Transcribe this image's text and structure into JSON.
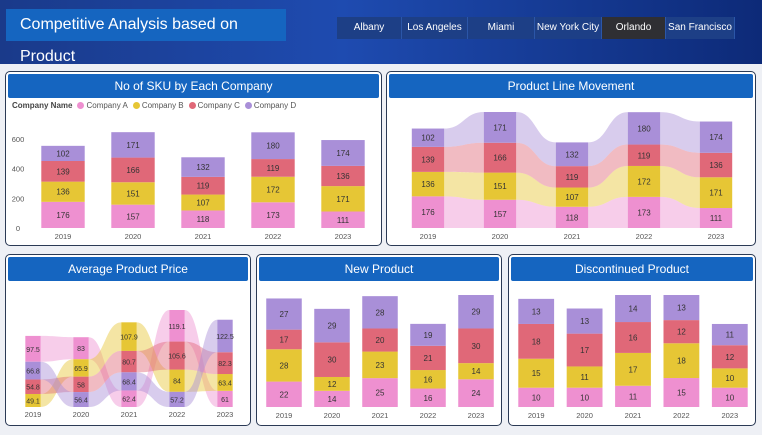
{
  "title": "Competitive Analysis based on Product",
  "tabs": [
    {
      "label": "Albany",
      "active": false
    },
    {
      "label": "Los Angeles",
      "active": false
    },
    {
      "label": "Miami",
      "active": false
    },
    {
      "label": "New York City",
      "active": false
    },
    {
      "label": "Orlando",
      "active": true
    },
    {
      "label": "San Francisco",
      "active": false
    }
  ],
  "colors": {
    "A": "#ee90d0",
    "B": "#e6c635",
    "C": "#e06878",
    "D": "#a98fd8"
  },
  "legend": {
    "title": "Company Name",
    "items": [
      "Company A",
      "Company B",
      "Company C",
      "Company D"
    ]
  },
  "panels": {
    "sku": "No of SKU by Each Company",
    "plm": "Product Line Movement",
    "price": "Average Product Price",
    "new": "New Product",
    "disc": "Discontinued Product"
  },
  "chart_data": [
    {
      "type": "bar",
      "title": "No of SKU by Each Company",
      "categories": [
        "2019",
        "2020",
        "2021",
        "2022",
        "2023"
      ],
      "series": [
        {
          "name": "Company A",
          "values": [
            176,
            157,
            118,
            173,
            111
          ]
        },
        {
          "name": "Company B",
          "values": [
            136,
            151,
            107,
            172,
            171
          ]
        },
        {
          "name": "Company C",
          "values": [
            139,
            166,
            119,
            119,
            136
          ]
        },
        {
          "name": "Company D",
          "values": [
            102,
            171,
            132,
            180,
            174
          ]
        }
      ],
      "yticks": [
        0,
        200,
        400,
        600
      ],
      "ylim": [
        0,
        700
      ],
      "legend": "top"
    },
    {
      "type": "bar",
      "title": "Product Line Movement",
      "categories": [
        "2019",
        "2020",
        "2021",
        "2022",
        "2023"
      ],
      "series": [
        {
          "values": [
            176,
            157,
            118,
            173,
            111
          ]
        },
        {
          "values": [
            136,
            151,
            107,
            172,
            171
          ]
        },
        {
          "values": [
            139,
            166,
            119,
            119,
            136
          ]
        },
        {
          "values": [
            102,
            171,
            132,
            180,
            174
          ]
        }
      ]
    },
    {
      "type": "bar",
      "title": "Average Product Price",
      "categories": [
        "2019",
        "2020",
        "2021",
        "2022",
        "2023"
      ],
      "series": [
        {
          "values": [
            97.5,
            83.0,
            62.4,
            119.1,
            61.0
          ]
        },
        {
          "values": [
            49.1,
            65.9,
            107.9,
            84.0,
            63.4
          ]
        },
        {
          "values": [
            54.8,
            58.0,
            80.7,
            105.6,
            82.3
          ]
        },
        {
          "values": [
            66.8,
            56.4,
            68.4,
            57.2,
            122.5
          ]
        }
      ]
    },
    {
      "type": "bar",
      "title": "New Product",
      "categories": [
        "2019",
        "2020",
        "2021",
        "2022",
        "2023"
      ],
      "series": [
        {
          "values": [
            22,
            14,
            25,
            16,
            24
          ]
        },
        {
          "values": [
            28,
            12,
            23,
            16,
            14
          ]
        },
        {
          "values": [
            17,
            30,
            20,
            21,
            30
          ]
        },
        {
          "values": [
            27,
            29,
            28,
            19,
            29
          ]
        }
      ]
    },
    {
      "type": "bar",
      "title": "Discontinued Product",
      "categories": [
        "2019",
        "2020",
        "2021",
        "2022",
        "2023"
      ],
      "series": [
        {
          "values": [
            10,
            10,
            11,
            15,
            10
          ]
        },
        {
          "values": [
            15,
            11,
            17,
            18,
            10
          ]
        },
        {
          "values": [
            18,
            17,
            16,
            12,
            12
          ]
        },
        {
          "values": [
            13,
            13,
            14,
            13,
            11
          ]
        }
      ]
    }
  ]
}
